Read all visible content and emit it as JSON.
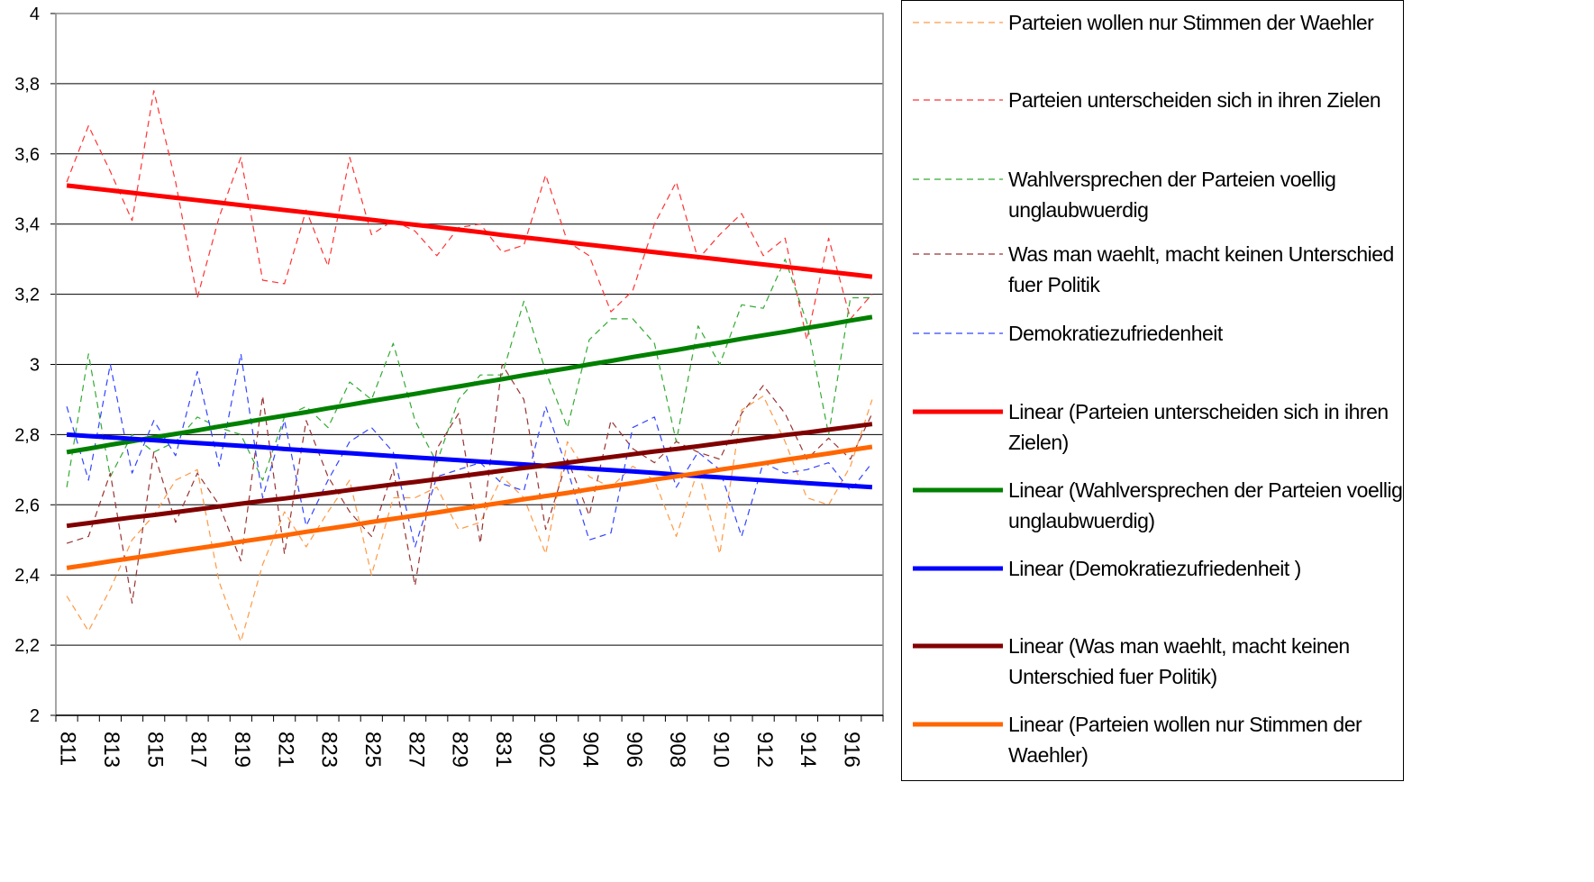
{
  "chart_data": {
    "type": "line",
    "categories": [
      "811",
      null,
      "813",
      null,
      "815",
      null,
      "817",
      null,
      "819",
      null,
      "821",
      null,
      "823",
      null,
      "825",
      null,
      "827",
      null,
      "829",
      null,
      "831",
      null,
      "902",
      null,
      "904",
      null,
      "906",
      null,
      "908",
      null,
      "910",
      null,
      "912",
      null,
      "914",
      null,
      "916",
      null
    ],
    "ylim": [
      2,
      4
    ],
    "yticks": [
      2,
      {
        "value": 2.2,
        "label": "2,2"
      },
      {
        "value": 2.4,
        "label": "2,4"
      },
      {
        "value": 2.6,
        "label": "2,6"
      },
      {
        "value": 2.8,
        "label": "2,8"
      },
      3,
      {
        "value": 3.2,
        "label": "3,2"
      },
      {
        "value": 3.4,
        "label": "3,4"
      },
      {
        "value": 3.6,
        "label": "3,6"
      },
      {
        "value": 3.8,
        "label": "3,8"
      },
      4
    ],
    "grid": true,
    "legend": "right",
    "series": [
      {
        "name": "Parteien wollen nur Stimmen der Waehler",
        "color": "#ff9944",
        "dashed": true,
        "values": [
          2.34,
          2.24,
          2.36,
          2.5,
          2.57,
          2.67,
          2.7,
          2.38,
          2.21,
          2.43,
          2.58,
          2.48,
          2.58,
          2.67,
          2.4,
          2.62,
          2.62,
          2.65,
          2.53,
          2.55,
          2.68,
          2.62,
          2.46,
          2.78,
          2.68,
          2.65,
          2.71,
          2.67,
          2.51,
          2.7,
          2.46,
          2.87,
          2.91,
          2.78,
          2.62,
          2.6,
          2.71,
          2.9
        ]
      },
      {
        "name": "Parteien unterscheiden sich in ihren Zielen",
        "color": "#ff3333",
        "dashed": true,
        "values": [
          3.52,
          3.68,
          3.55,
          3.41,
          3.78,
          3.52,
          3.19,
          3.42,
          3.59,
          3.24,
          3.23,
          3.44,
          3.28,
          3.59,
          3.37,
          3.41,
          3.38,
          3.31,
          3.39,
          3.4,
          3.32,
          3.34,
          3.54,
          3.35,
          3.31,
          3.15,
          3.21,
          3.4,
          3.52,
          3.3,
          3.37,
          3.43,
          3.31,
          3.36,
          3.07,
          3.36,
          3.13,
          3.2
        ]
      },
      {
        "name": "Wahlversprechen der Parteien voellig unglaubwuerdig",
        "color": "#33aa33",
        "dashed": true,
        "values": [
          2.65,
          3.03,
          2.68,
          2.8,
          2.75,
          2.78,
          2.85,
          2.82,
          2.8,
          2.67,
          2.85,
          2.88,
          2.82,
          2.95,
          2.9,
          3.06,
          2.84,
          2.72,
          2.9,
          2.97,
          2.97,
          3.18,
          2.98,
          2.82,
          3.07,
          3.13,
          3.13,
          3.06,
          2.78,
          3.11,
          3.0,
          3.17,
          3.16,
          3.3,
          3.12,
          2.8,
          3.19,
          3.19
        ]
      },
      {
        "name": "Was man waehlt, macht keinen Unterschied fuer Politik",
        "color": "#993333",
        "dashed": true,
        "values": [
          2.49,
          2.51,
          2.69,
          2.32,
          2.75,
          2.55,
          2.69,
          2.6,
          2.44,
          2.91,
          2.46,
          2.84,
          2.68,
          2.58,
          2.51,
          2.7,
          2.37,
          2.76,
          2.86,
          2.49,
          3.0,
          2.9,
          2.53,
          2.73,
          2.57,
          2.84,
          2.76,
          2.72,
          2.78,
          2.75,
          2.73,
          2.86,
          2.94,
          2.86,
          2.73,
          2.79,
          2.73,
          2.86
        ]
      },
      {
        "name": "Demokratiezufriedenheit",
        "color": "#3344ff",
        "dashed": true,
        "values": [
          2.88,
          2.67,
          3.0,
          2.69,
          2.84,
          2.74,
          2.98,
          2.71,
          3.03,
          2.62,
          2.84,
          2.54,
          2.67,
          2.78,
          2.82,
          2.75,
          2.48,
          2.68,
          2.7,
          2.72,
          2.66,
          2.64,
          2.88,
          2.7,
          2.5,
          2.52,
          2.82,
          2.85,
          2.65,
          2.75,
          2.7,
          2.51,
          2.72,
          2.69,
          2.7,
          2.72,
          2.64,
          2.72
        ]
      },
      {
        "name": "Linear (Parteien unterscheiden sich in ihren Zielen)",
        "color": "#ff0000",
        "dashed": false,
        "values": [
          3.51,
          3.503,
          3.496,
          3.489,
          3.482,
          3.475,
          3.468,
          3.461,
          3.454,
          3.447,
          3.44,
          3.433,
          3.426,
          3.419,
          3.412,
          3.405,
          3.398,
          3.391,
          3.384,
          3.377,
          3.369,
          3.362,
          3.355,
          3.348,
          3.341,
          3.334,
          3.327,
          3.32,
          3.313,
          3.306,
          3.299,
          3.292,
          3.285,
          3.278,
          3.271,
          3.264,
          3.257,
          3.25
        ]
      },
      {
        "name": "Linear (Wahlversprechen der Parteien voellig unglaubwuerdig)",
        "color": "#008000",
        "dashed": false,
        "values": [
          2.75,
          2.76,
          2.771,
          2.781,
          2.792,
          2.802,
          2.812,
          2.823,
          2.833,
          2.844,
          2.854,
          2.864,
          2.875,
          2.885,
          2.896,
          2.906,
          2.916,
          2.927,
          2.937,
          2.948,
          2.958,
          2.969,
          2.979,
          2.989,
          3.0,
          3.01,
          3.021,
          3.031,
          3.041,
          3.052,
          3.062,
          3.073,
          3.083,
          3.093,
          3.104,
          3.114,
          3.125,
          3.135
        ]
      },
      {
        "name": "Linear (Demokratiezufriedenheit )",
        "color": "#0000ff",
        "dashed": false,
        "values": [
          2.8,
          2.796,
          2.792,
          2.788,
          2.784,
          2.78,
          2.776,
          2.772,
          2.768,
          2.764,
          2.759,
          2.755,
          2.751,
          2.747,
          2.743,
          2.739,
          2.735,
          2.731,
          2.727,
          2.723,
          2.719,
          2.715,
          2.711,
          2.707,
          2.703,
          2.699,
          2.695,
          2.691,
          2.686,
          2.682,
          2.678,
          2.674,
          2.67,
          2.666,
          2.662,
          2.658,
          2.654,
          2.65
        ]
      },
      {
        "name": "Linear (Was man waehlt, macht keinen Unterschied fuer Politik)",
        "color": "#800000",
        "dashed": false,
        "values": [
          2.54,
          2.548,
          2.556,
          2.564,
          2.571,
          2.579,
          2.587,
          2.595,
          2.603,
          2.611,
          2.618,
          2.626,
          2.634,
          2.642,
          2.65,
          2.658,
          2.665,
          2.673,
          2.681,
          2.689,
          2.697,
          2.705,
          2.712,
          2.72,
          2.728,
          2.736,
          2.744,
          2.752,
          2.759,
          2.767,
          2.775,
          2.783,
          2.791,
          2.799,
          2.806,
          2.814,
          2.822,
          2.83
        ]
      },
      {
        "name": "Linear (Parteien wollen nur Stimmen der Waehler)",
        "color": "#ff6600",
        "dashed": false,
        "values": [
          2.42,
          2.429,
          2.439,
          2.448,
          2.457,
          2.467,
          2.476,
          2.485,
          2.495,
          2.504,
          2.513,
          2.523,
          2.532,
          2.541,
          2.551,
          2.56,
          2.569,
          2.578,
          2.588,
          2.597,
          2.606,
          2.616,
          2.625,
          2.634,
          2.644,
          2.653,
          2.662,
          2.672,
          2.681,
          2.69,
          2.7,
          2.709,
          2.718,
          2.728,
          2.737,
          2.746,
          2.756,
          2.765
        ]
      }
    ]
  }
}
